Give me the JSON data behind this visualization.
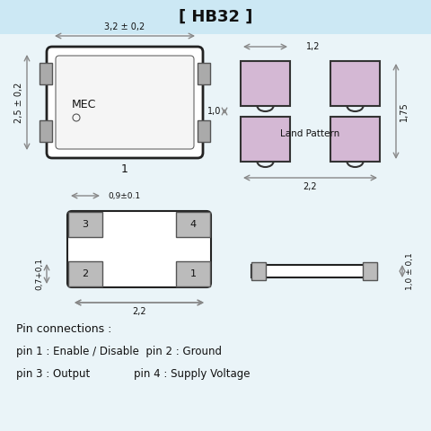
{
  "title": "[ HB32 ]",
  "title_bg": "#cce8f4",
  "bg_color": "#eaf4f8",
  "pad_color": "#d4b8d4",
  "pad_border": "#333333",
  "dim_color": "#888888",
  "text_color": "#111111",
  "body_edge": "#222222",
  "pad_gray": "#bbbbbb",
  "pin_text_1": "Pin connections :",
  "pin_text_2": "pin 1 : Enable / Disable  pin 2 : Ground",
  "pin_text_3": "pin 3 : Output             pin 4 : Supply Voltage"
}
